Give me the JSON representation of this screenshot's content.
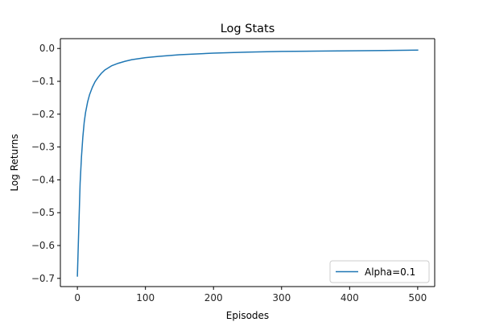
{
  "chart_data": {
    "type": "line",
    "title": "Log Stats",
    "xlabel": "Episodes",
    "ylabel": "Log Returns",
    "xlim": [
      -25,
      525
    ],
    "ylim": [
      -0.725,
      0.03
    ],
    "xticks": [
      0,
      100,
      200,
      300,
      400,
      500
    ],
    "xtick_labels": [
      "0",
      "100",
      "200",
      "300",
      "400",
      "500"
    ],
    "yticks": [
      0.0,
      -0.1,
      -0.2,
      -0.3,
      -0.4,
      -0.5,
      -0.6,
      -0.7
    ],
    "ytick_labels": [
      "0.0",
      "−0.1",
      "−0.2",
      "−0.3",
      "−0.4",
      "−0.5",
      "−0.6",
      "−0.7"
    ],
    "grid": false,
    "legend_position": "bottom-right",
    "colors": {
      "series": "#1f77b4"
    },
    "series": [
      {
        "name": "Alpha=0.1",
        "x": [
          0,
          2,
          4,
          6,
          8,
          10,
          12,
          15,
          18,
          22,
          26,
          30,
          35,
          40,
          50,
          60,
          70,
          80,
          100,
          120,
          150,
          200,
          250,
          300,
          350,
          400,
          450,
          500
        ],
        "y": [
          -0.693,
          -0.55,
          -0.41,
          -0.33,
          -0.27,
          -0.225,
          -0.195,
          -0.163,
          -0.14,
          -0.118,
          -0.101,
          -0.089,
          -0.076,
          -0.066,
          -0.053,
          -0.045,
          -0.039,
          -0.034,
          -0.028,
          -0.024,
          -0.019,
          -0.014,
          -0.011,
          -0.009,
          -0.008,
          -0.007,
          -0.006,
          -0.005
        ]
      }
    ]
  }
}
